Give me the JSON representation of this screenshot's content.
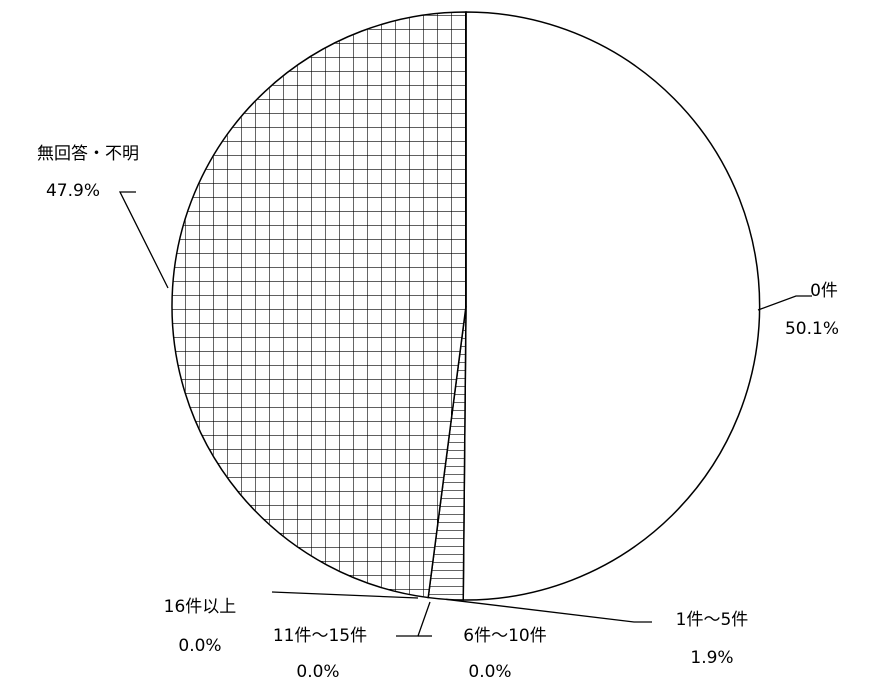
{
  "chart_data": {
    "type": "pie",
    "title": "",
    "start": "top",
    "direction": "clockwise",
    "slices": [
      {
        "label": "0件",
        "value": 50.1,
        "value_label": "50.1%",
        "pattern": "none"
      },
      {
        "label": "1件～5件",
        "value": 1.9,
        "value_label": "1.9%",
        "pattern": "horizontal-lines"
      },
      {
        "label": "6件～10件",
        "value": 0.0,
        "value_label": "0.0%",
        "pattern": "none"
      },
      {
        "label": "11件～15件",
        "value": 0.0,
        "value_label": "0.0%",
        "pattern": "none"
      },
      {
        "label": "16件以上",
        "value": 0.0,
        "value_label": "0.0%",
        "pattern": "none"
      },
      {
        "label": "無回答・不明",
        "value": 47.9,
        "value_label": "47.9%",
        "pattern": "grid"
      }
    ],
    "colors": {
      "fill": "#ffffff",
      "stroke": "#000000"
    }
  }
}
